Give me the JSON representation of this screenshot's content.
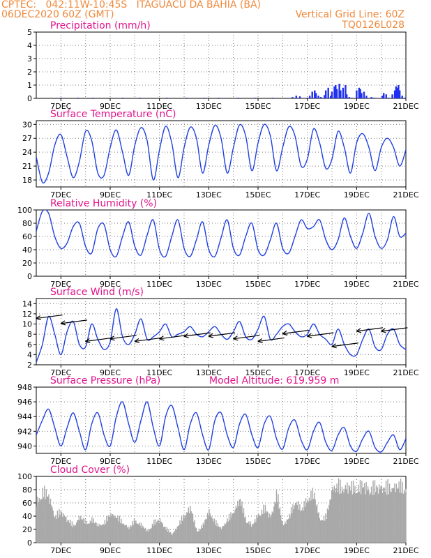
{
  "header": {
    "line1": "CPTEC:   042:11W-10:45S   ITAGUACU DA BAHIA (BA)",
    "line2": "06DEC2020 60Z (GMT)",
    "grid_note": "Vertical Grid Line: 60Z",
    "code": "TQ0126L028"
  },
  "colors": {
    "header": "#f0883a",
    "title": "#e0148c",
    "line": "#2040e0",
    "bar": "#2030f0",
    "cloud": "#a8a8a8"
  },
  "chart_data": [
    {
      "type": "bar",
      "title": "Precipitation (mm/h)",
      "ylim": [
        0,
        5
      ],
      "yticks": [
        0,
        1,
        2,
        3,
        4,
        5
      ],
      "xticks": [
        "7DEC",
        "9DEC",
        "11DEC",
        "13DEC",
        "15DEC",
        "17DEC",
        "19DEC",
        "21DEC"
      ],
      "x_range_days": [
        6.0,
        21.0
      ],
      "x": [
        7.0,
        7.7,
        8.3,
        9.5,
        10.2,
        11.3,
        12.1,
        12.8,
        13.4,
        14.2,
        14.9,
        15.6,
        16.4,
        16.55,
        16.7,
        17.0,
        17.1,
        17.2,
        17.3,
        17.35,
        17.45,
        17.55,
        17.7,
        17.75,
        17.85,
        17.95,
        18.0,
        18.1,
        18.15,
        18.2,
        18.3,
        18.35,
        18.45,
        18.55,
        18.6,
        18.7,
        18.8,
        19.0,
        19.1,
        19.15,
        19.2,
        19.3,
        19.4,
        19.6,
        19.7,
        20.05,
        20.1,
        20.2,
        20.3,
        20.45,
        20.55,
        20.6,
        20.65,
        20.7,
        20.75,
        20.85,
        20.95
      ],
      "values": [
        0.05,
        0.05,
        0.05,
        0.05,
        0.05,
        0.05,
        0.05,
        0.05,
        0.05,
        0.05,
        0.05,
        0.05,
        0.1,
        0.2,
        0.15,
        0.05,
        0.2,
        0.5,
        0.6,
        0.4,
        0.2,
        0.1,
        0.25,
        0.6,
        0.8,
        0.2,
        0.5,
        0.9,
        1.0,
        0.7,
        1.1,
        0.6,
        0.8,
        1.0,
        0.3,
        0.1,
        0.05,
        0.6,
        0.8,
        0.7,
        0.4,
        0.5,
        0.2,
        0.1,
        0.05,
        0.2,
        0.4,
        0.3,
        0.05,
        0.3,
        0.6,
        0.9,
        0.8,
        1.0,
        0.6,
        0.2,
        0.05
      ]
    },
    {
      "type": "line",
      "title": "Surface Temperature (nC)",
      "ylim": [
        16.5,
        30.8
      ],
      "yticks": [
        18,
        21,
        24,
        27,
        30
      ],
      "xticks": [
        "7DEC",
        "9DEC",
        "11DEC",
        "13DEC",
        "15DEC",
        "17DEC",
        "19DEC",
        "21DEC"
      ],
      "x_range_days": [
        6.0,
        21.0
      ],
      "x": [
        6.0,
        6.25,
        6.5,
        6.75,
        7.0,
        7.25,
        7.5,
        7.75,
        8.0,
        8.25,
        8.5,
        8.75,
        9.0,
        9.25,
        9.5,
        9.75,
        10.0,
        10.25,
        10.5,
        10.75,
        11.0,
        11.25,
        11.5,
        11.75,
        12.0,
        12.25,
        12.5,
        12.75,
        13.0,
        13.25,
        13.5,
        13.75,
        14.0,
        14.25,
        14.5,
        14.75,
        15.0,
        15.25,
        15.5,
        15.75,
        16.0,
        16.25,
        16.5,
        16.75,
        17.0,
        17.25,
        17.5,
        17.75,
        18.0,
        18.25,
        18.5,
        18.75,
        19.0,
        19.25,
        19.5,
        19.75,
        20.0,
        20.25,
        20.5,
        20.75,
        21.0
      ],
      "y": [
        23.0,
        17.5,
        19.5,
        25.5,
        27.8,
        23.0,
        18.5,
        22.0,
        28.5,
        26.5,
        19.5,
        19.0,
        25.0,
        28.8,
        24.0,
        19.0,
        25.5,
        29.3,
        26.5,
        18.0,
        24.5,
        29.6,
        26.0,
        18.5,
        25.0,
        29.4,
        27.0,
        19.5,
        25.5,
        29.8,
        27.0,
        19.5,
        25.0,
        29.9,
        27.5,
        20.0,
        26.0,
        30.0,
        27.5,
        20.0,
        25.0,
        29.5,
        27.5,
        21.0,
        22.5,
        29.0,
        26.0,
        20.5,
        22.5,
        28.5,
        25.0,
        19.5,
        26.0,
        28.0,
        25.0,
        20.0,
        25.0,
        27.0,
        25.0,
        21.0,
        24.5
      ]
    },
    {
      "type": "line",
      "title": "Relative Humidity (%)",
      "ylim": [
        0,
        100
      ],
      "yticks": [
        0,
        20,
        40,
        60,
        80,
        100
      ],
      "xticks": [
        "7DEC",
        "9DEC",
        "11DEC",
        "13DEC",
        "15DEC",
        "17DEC",
        "19DEC",
        "21DEC"
      ],
      "x_range_days": [
        6.0,
        21.0
      ],
      "x": [
        6.0,
        6.25,
        6.5,
        6.75,
        7.0,
        7.25,
        7.5,
        7.75,
        8.0,
        8.25,
        8.5,
        8.75,
        9.0,
        9.25,
        9.5,
        9.75,
        10.0,
        10.25,
        10.5,
        10.75,
        11.0,
        11.25,
        11.5,
        11.75,
        12.0,
        12.25,
        12.5,
        12.75,
        13.0,
        13.25,
        13.5,
        13.75,
        14.0,
        14.25,
        14.5,
        14.75,
        15.0,
        15.25,
        15.5,
        15.75,
        16.0,
        16.25,
        16.5,
        16.75,
        17.0,
        17.25,
        17.5,
        17.75,
        18.0,
        18.25,
        18.5,
        18.75,
        19.0,
        19.25,
        19.5,
        19.75,
        20.0,
        20.25,
        20.5,
        20.75,
        21.0
      ],
      "y": [
        68.0,
        98.0,
        95.0,
        60.0,
        42.0,
        50.0,
        75.0,
        80.0,
        45.0,
        35.0,
        72.0,
        78.0,
        40.0,
        30.0,
        60.0,
        82.0,
        45.0,
        32.0,
        62.0,
        85.0,
        40.0,
        30.0,
        60.0,
        85.0,
        42.0,
        30.0,
        55.0,
        82.0,
        40.0,
        30.0,
        58.0,
        85.0,
        42.0,
        32.0,
        60.0,
        80.0,
        40.0,
        32.0,
        55.0,
        80.0,
        42.0,
        35.0,
        60.0,
        85.0,
        72.0,
        75.0,
        85.0,
        55.0,
        40.0,
        55.0,
        88.0,
        60.0,
        42.0,
        65.0,
        95.0,
        60.0,
        42.0,
        55.0,
        90.0,
        60.0,
        65.0
      ]
    },
    {
      "type": "line",
      "title": "Surface Wind (m/s)",
      "ylim": [
        2,
        15
      ],
      "yticks": [
        2,
        4,
        6,
        8,
        10,
        12,
        14
      ],
      "xticks": [
        "7DEC",
        "9DEC",
        "11DEC",
        "13DEC",
        "15DEC",
        "17DEC",
        "19DEC",
        "21DEC"
      ],
      "x_range_days": [
        6.0,
        21.0
      ],
      "x": [
        6.0,
        6.25,
        6.5,
        6.75,
        7.0,
        7.25,
        7.5,
        7.75,
        8.0,
        8.25,
        8.5,
        8.75,
        9.0,
        9.25,
        9.5,
        9.75,
        10.0,
        10.25,
        10.5,
        10.75,
        11.0,
        11.25,
        11.5,
        11.75,
        12.0,
        12.25,
        12.5,
        12.75,
        13.0,
        13.25,
        13.5,
        13.75,
        14.0,
        14.25,
        14.5,
        14.75,
        15.0,
        15.25,
        15.5,
        15.75,
        16.0,
        16.25,
        16.5,
        16.75,
        17.0,
        17.25,
        17.5,
        17.75,
        18.0,
        18.25,
        18.5,
        18.75,
        19.0,
        19.25,
        19.5,
        19.75,
        20.0,
        20.25,
        20.5,
        20.75,
        21.0
      ],
      "y": [
        2.5,
        6.0,
        11.5,
        8.0,
        4.0,
        8.5,
        10.5,
        6.0,
        5.5,
        10.0,
        7.0,
        5.0,
        6.5,
        13.0,
        7.5,
        6.0,
        8.0,
        11.0,
        7.0,
        7.5,
        8.5,
        10.0,
        7.5,
        8.0,
        8.5,
        9.5,
        8.0,
        7.5,
        8.5,
        9.5,
        8.0,
        7.0,
        8.5,
        10.5,
        7.5,
        7.0,
        9.0,
        11.5,
        7.0,
        8.0,
        9.5,
        10.0,
        8.5,
        7.5,
        8.0,
        10.0,
        8.0,
        7.0,
        6.0,
        9.0,
        6.0,
        4.0,
        4.0,
        7.0,
        9.0,
        5.5,
        5.0,
        8.0,
        9.0,
        6.0,
        5.0
      ],
      "vectors_days": [
        6.5,
        7.5,
        8.5,
        9.5,
        10.5,
        11.5,
        12.5,
        13.5,
        14.5,
        15.5,
        16.5,
        17.5,
        18.5,
        19.5,
        20.5
      ]
    },
    {
      "type": "line",
      "title": "Surface Pressure (hPa)",
      "annotation": "Model Altitude: 619.959 m",
      "ylim": [
        939.0,
        948.0
      ],
      "yticks": [
        940,
        942,
        944,
        946,
        948
      ],
      "xticks": [
        "7DEC",
        "9DEC",
        "11DEC",
        "13DEC",
        "15DEC",
        "17DEC",
        "19DEC",
        "21DEC"
      ],
      "x_range_days": [
        6.0,
        21.0
      ],
      "x": [
        6.0,
        6.25,
        6.5,
        6.75,
        7.0,
        7.25,
        7.5,
        7.75,
        8.0,
        8.25,
        8.5,
        8.75,
        9.0,
        9.25,
        9.5,
        9.75,
        10.0,
        10.25,
        10.5,
        10.75,
        11.0,
        11.25,
        11.5,
        11.75,
        12.0,
        12.25,
        12.5,
        12.75,
        13.0,
        13.25,
        13.5,
        13.75,
        14.0,
        14.25,
        14.5,
        14.75,
        15.0,
        15.25,
        15.5,
        15.75,
        16.0,
        16.25,
        16.5,
        16.75,
        17.0,
        17.25,
        17.5,
        17.75,
        18.0,
        18.25,
        18.5,
        18.75,
        19.0,
        19.25,
        19.5,
        19.75,
        20.0,
        20.25,
        20.5,
        20.75,
        21.0
      ],
      "y": [
        941.5,
        943.5,
        945.0,
        942.5,
        940.0,
        942.5,
        944.5,
        942.0,
        939.5,
        943.0,
        944.5,
        941.5,
        940.0,
        944.0,
        946.0,
        943.0,
        940.5,
        943.5,
        946.0,
        942.5,
        940.0,
        944.0,
        945.5,
        942.5,
        939.5,
        943.0,
        944.5,
        941.5,
        939.5,
        943.5,
        944.5,
        941.5,
        939.8,
        943.0,
        944.3,
        941.5,
        939.8,
        943.0,
        944.0,
        941.0,
        939.6,
        942.5,
        943.5,
        940.8,
        939.5,
        942.0,
        943.2,
        940.5,
        939.4,
        941.5,
        942.5,
        940.0,
        939.3,
        941.0,
        942.0,
        939.8,
        939.2,
        940.5,
        941.5,
        939.5,
        941.0
      ]
    },
    {
      "type": "area",
      "title": "Cloud Cover (%)",
      "ylim": [
        0,
        100
      ],
      "yticks": [
        0,
        20,
        40,
        60,
        80,
        100
      ],
      "xticks": [
        "7DEC",
        "9DEC",
        "11DEC",
        "13DEC",
        "15DEC",
        "17DEC",
        "19DEC",
        "21DEC"
      ],
      "x_range_days": [
        6.0,
        21.0
      ],
      "x": [
        6.0,
        6.25,
        6.5,
        6.75,
        7.0,
        7.25,
        7.5,
        7.75,
        8.0,
        8.25,
        8.5,
        8.75,
        9.0,
        9.25,
        9.5,
        9.75,
        10.0,
        10.25,
        10.5,
        10.75,
        11.0,
        11.25,
        11.5,
        11.75,
        12.0,
        12.25,
        12.5,
        12.75,
        13.0,
        13.25,
        13.5,
        13.75,
        14.0,
        14.25,
        14.5,
        14.75,
        15.0,
        15.25,
        15.5,
        15.75,
        16.0,
        16.25,
        16.5,
        16.75,
        17.0,
        17.25,
        17.5,
        17.75,
        18.0,
        18.25,
        18.5,
        18.75,
        19.0,
        19.25,
        19.5,
        19.75,
        20.0,
        20.25,
        20.5,
        20.75,
        21.0
      ],
      "y": [
        70.0,
        90.0,
        80.0,
        45.0,
        55.0,
        40.0,
        30.0,
        45.0,
        35.0,
        40.0,
        30.0,
        35.0,
        50.0,
        45.0,
        35.0,
        25.0,
        40.0,
        30.0,
        20.0,
        35.0,
        40.0,
        25.0,
        15.0,
        30.0,
        50.0,
        60.0,
        20.0,
        30.0,
        55.0,
        35.0,
        25.0,
        40.0,
        55.0,
        75.0,
        40.0,
        30.0,
        50.0,
        60.0,
        45.0,
        85.0,
        30.0,
        45.0,
        75.0,
        55.0,
        80.0,
        85.0,
        40.0,
        45.0,
        95.0,
        98.0,
        97.0,
        96.0,
        97.0,
        98.0,
        95.0,
        96.0,
        97.0,
        96.0,
        97.0,
        98.0,
        97.0
      ]
    }
  ]
}
